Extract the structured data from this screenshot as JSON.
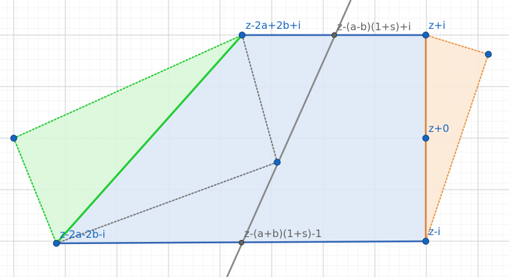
{
  "labels": {
    "top_left_vertex": "z-2a+2b+i",
    "top_mid_point": "z-(a-b)(1+s)+i",
    "top_right_vertex": "z+i",
    "right_mid_vertex": "z+0",
    "bottom_left_vertex": "z-2a-2b-i",
    "bottom_mid_point": "z-(a+b)(1+s)-1",
    "bottom_right_vertex": "z-i"
  },
  "colors": {
    "main_polygon_fill": "#dce8f7",
    "main_polygon_edge": "#2f63b3",
    "green_fill": "#d9f7d9",
    "green_edge": "#22cc33",
    "orange_fill": "#fde9d6",
    "orange_edge": "#d9823b",
    "gray_line": "#888888",
    "point_blue": "#1565c0",
    "point_gray": "#555555",
    "grid_major": "#c9c9c9",
    "grid_minor": "#ececec"
  }
}
